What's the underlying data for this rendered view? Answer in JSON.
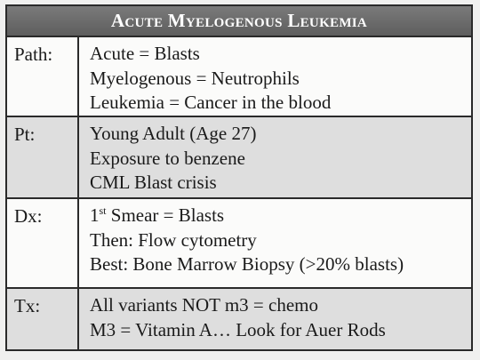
{
  "title": "Acute Myelogenous Leukemia",
  "rows": [
    {
      "label": "Path:",
      "lines": [
        "Acute = Blasts",
        "Myelogenous = Neutrophils",
        "Leukemia = Cancer in the blood"
      ]
    },
    {
      "label": "Pt:",
      "lines": [
        "Young Adult (Age 27)",
        "Exposure to benzene",
        "CML Blast crisis"
      ]
    },
    {
      "label": "Dx:",
      "lines": [
        {
          "prefix": "1",
          "sup": "st",
          "rest": " Smear = Blasts"
        },
        "Then: Flow cytometry",
        "Best: Bone Marrow Biopsy (>20% blasts)"
      ]
    },
    {
      "label": "Tx:",
      "lines": [
        "All variants NOT m3 = chemo",
        "M3 = Vitamin A… Look for Auer Rods"
      ]
    }
  ]
}
